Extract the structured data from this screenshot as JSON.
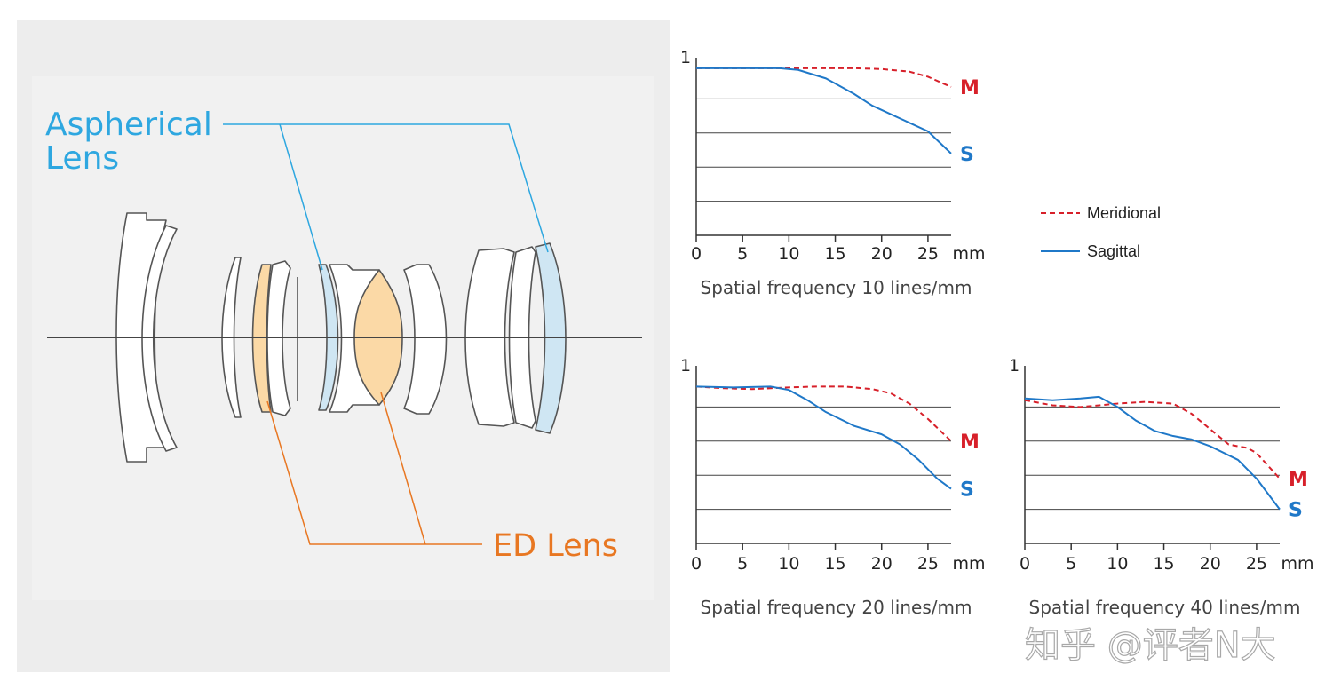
{
  "diagram": {
    "aspherical_label": [
      "Aspherical",
      "Lens"
    ],
    "ed_label": "ED Lens",
    "colors": {
      "aspherical": "#2ea7e0",
      "ed": "#e87722",
      "ed_fill": "#fbd9a6",
      "asph_fill": "#cfe6f3",
      "background": "#ededed"
    }
  },
  "chart_data": [
    {
      "type": "line",
      "caption": "Spatial frequency 10 lines/mm",
      "x_ticks": [
        "0",
        "5",
        "10",
        "15",
        "20",
        "25"
      ],
      "x_unit": "mm",
      "y_tick_top": "1",
      "xlim": [
        0,
        27.5
      ],
      "ylim": [
        0,
        1
      ],
      "grid": "horizontal",
      "series": [
        {
          "name": "Meridional",
          "label": "M",
          "style": "dashed",
          "color": "#d7202a",
          "x": [
            0,
            5,
            10,
            15,
            17,
            20,
            23,
            25,
            27.5
          ],
          "y": [
            0.98,
            0.98,
            0.98,
            0.98,
            0.98,
            0.975,
            0.96,
            0.93,
            0.87
          ]
        },
        {
          "name": "Sagittal",
          "label": "S",
          "style": "solid",
          "color": "#1f78c8",
          "x": [
            0,
            5,
            9,
            11,
            14,
            17,
            19,
            21,
            23,
            25,
            27.5
          ],
          "y": [
            0.98,
            0.98,
            0.98,
            0.97,
            0.92,
            0.83,
            0.76,
            0.71,
            0.66,
            0.61,
            0.48
          ]
        }
      ]
    },
    {
      "type": "line",
      "caption": "Spatial frequency 20 lines/mm",
      "x_ticks": [
        "0",
        "5",
        "10",
        "15",
        "20",
        "25"
      ],
      "x_unit": "mm",
      "y_tick_top": "1",
      "xlim": [
        0,
        27.5
      ],
      "ylim": [
        0,
        1
      ],
      "grid": "horizontal",
      "series": [
        {
          "name": "Meridional",
          "label": "M",
          "style": "dashed",
          "color": "#d7202a",
          "x": [
            0,
            3,
            6,
            10,
            13,
            16,
            19,
            21,
            23,
            25,
            27.5
          ],
          "y": [
            0.92,
            0.91,
            0.905,
            0.915,
            0.92,
            0.92,
            0.905,
            0.88,
            0.82,
            0.73,
            0.6
          ]
        },
        {
          "name": "Sagittal",
          "label": "S",
          "style": "solid",
          "color": "#1f78c8",
          "x": [
            0,
            4,
            8,
            10,
            12,
            14,
            17,
            20,
            22,
            24,
            26,
            27.5
          ],
          "y": [
            0.92,
            0.915,
            0.92,
            0.9,
            0.84,
            0.77,
            0.69,
            0.64,
            0.58,
            0.49,
            0.38,
            0.32
          ]
        }
      ]
    },
    {
      "type": "line",
      "caption": "Spatial frequency 40 lines/mm",
      "x_ticks": [
        "0",
        "5",
        "10",
        "15",
        "20",
        "25"
      ],
      "x_unit": "mm",
      "y_tick_top": "1",
      "xlim": [
        0,
        27.5
      ],
      "ylim": [
        0,
        1
      ],
      "grid": "horizontal",
      "series": [
        {
          "name": "Meridional",
          "label": "M",
          "style": "dashed",
          "color": "#d7202a",
          "x": [
            0,
            3,
            6,
            10,
            13,
            16,
            18,
            20,
            22,
            24,
            25,
            27.5
          ],
          "y": [
            0.84,
            0.81,
            0.8,
            0.82,
            0.83,
            0.82,
            0.76,
            0.67,
            0.58,
            0.56,
            0.53,
            0.38
          ]
        },
        {
          "name": "Sagittal",
          "label": "S",
          "style": "solid",
          "color": "#1f78c8",
          "x": [
            0,
            3,
            6,
            8,
            10,
            12,
            14,
            16,
            18,
            20,
            23,
            25,
            27.5
          ],
          "y": [
            0.85,
            0.84,
            0.85,
            0.86,
            0.8,
            0.72,
            0.66,
            0.63,
            0.61,
            0.57,
            0.49,
            0.38,
            0.2
          ]
        }
      ]
    }
  ],
  "legend": [
    {
      "name": "Meridional",
      "style": "dashed",
      "color": "#d7202a"
    },
    {
      "name": "Sagittal",
      "style": "solid",
      "color": "#1f78c8"
    }
  ],
  "watermark": "知乎 @评者N大"
}
